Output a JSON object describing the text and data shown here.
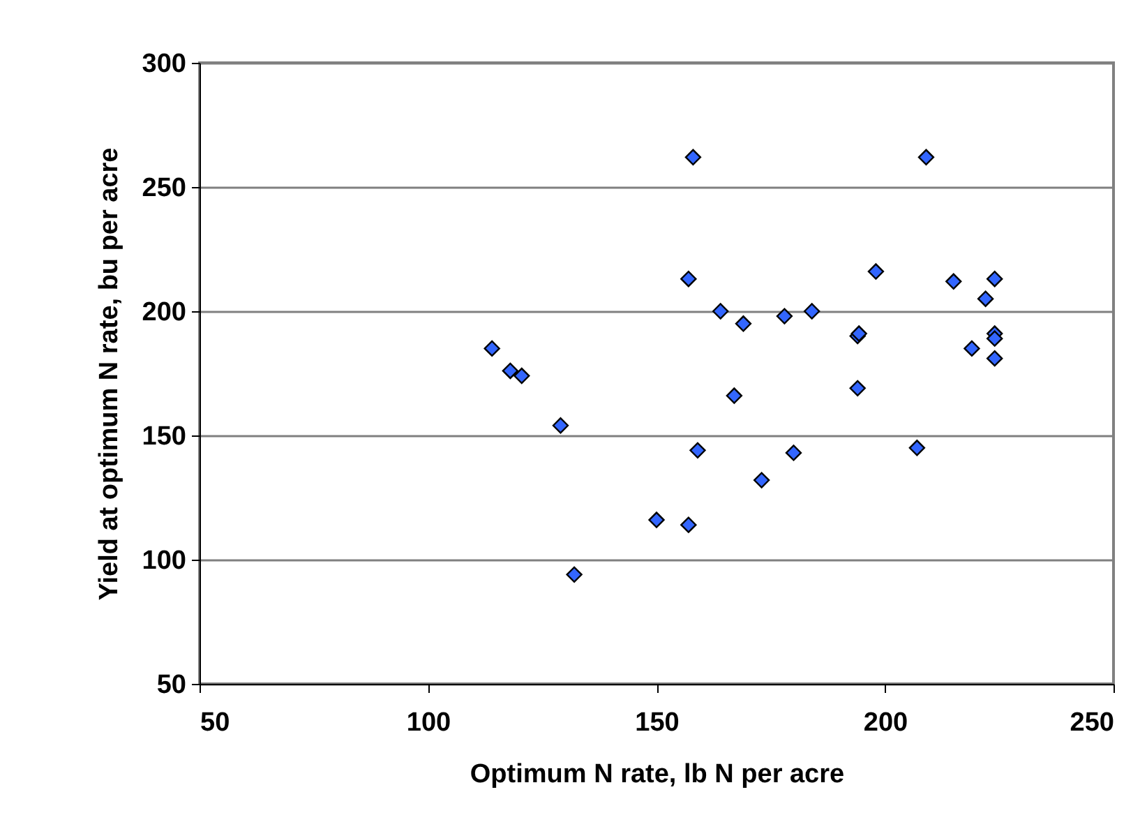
{
  "chart_data": {
    "type": "scatter",
    "xlabel": "Optimum N rate, lb N per acre",
    "ylabel": "Yield at optimum N rate, bu per acre",
    "x": [
      114,
      118,
      120.5,
      129,
      132,
      158,
      209,
      157,
      164,
      169,
      178,
      184,
      198,
      194,
      194.3,
      215,
      224,
      222,
      224,
      224,
      219,
      224,
      167,
      194,
      159,
      180,
      207,
      173,
      150,
      157
    ],
    "series": [
      {
        "color": "#3366ff",
        "values": [
          185,
          176,
          174,
          154,
          94,
          262,
          262,
          213,
          200,
          195,
          198,
          200,
          216,
          190,
          191,
          212,
          213,
          205,
          191,
          189,
          185,
          181,
          166,
          169,
          144,
          143,
          145,
          132,
          116,
          114
        ]
      }
    ],
    "xlim": [
      50,
      250
    ],
    "xticks": [
      50,
      100,
      150,
      200,
      250
    ],
    "ylim": [
      50,
      300
    ],
    "yticks": [
      50,
      100,
      150,
      200,
      250,
      300
    ],
    "grid": "y",
    "marker": "diamond"
  }
}
